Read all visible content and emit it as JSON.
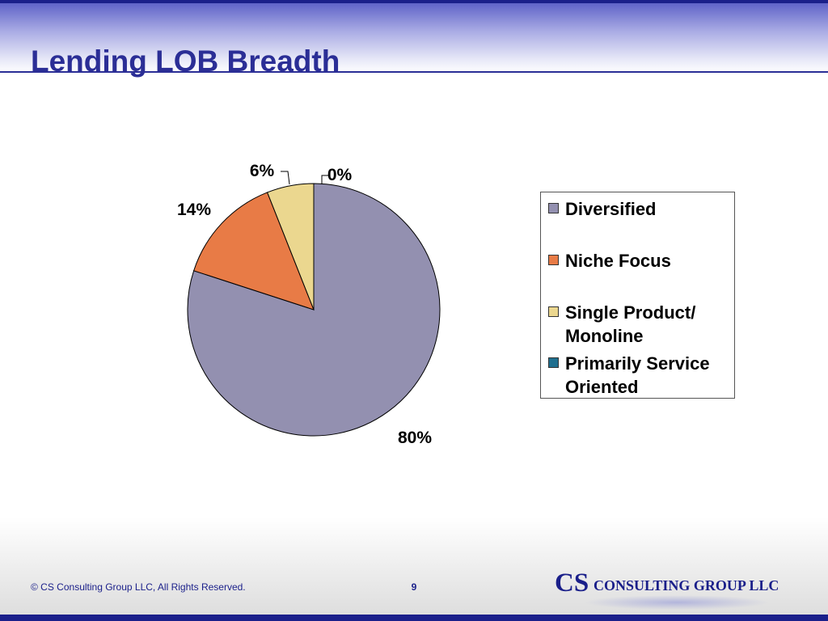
{
  "slide": {
    "title": "Lending LOB Breadth",
    "footer_copyright": "© CS Consulting Group LLC, All Rights Reserved.",
    "page_number": "9",
    "logo": {
      "initials": "CS",
      "name": "CONSULTING GROUP LLC"
    }
  },
  "colors": {
    "title": "#2b2e96",
    "brand": "#1a1f8a",
    "diversified": "#9390b0",
    "niche_focus": "#e87b46",
    "single_product": "#ebd78f",
    "primarily_service": "#1f6f8f"
  },
  "chart_data": {
    "type": "pie",
    "title": "",
    "categories": [
      "Diversified",
      "Niche Focus",
      "Single Product/ Monoline",
      "Primarily Service Oriented"
    ],
    "values": [
      80,
      14,
      6,
      0
    ],
    "data_labels": [
      "80%",
      "14%",
      "6%",
      "0%"
    ],
    "unit": "%",
    "legend_position": "right",
    "legend": [
      {
        "label": "Diversified",
        "color": "#9390b0"
      },
      {
        "label": "Niche Focus",
        "color": "#e87b46"
      },
      {
        "label": "Single Product/ Monoline",
        "color": "#ebd78f"
      },
      {
        "label": "Primarily Service Oriented",
        "color": "#1f6f8f"
      }
    ]
  }
}
